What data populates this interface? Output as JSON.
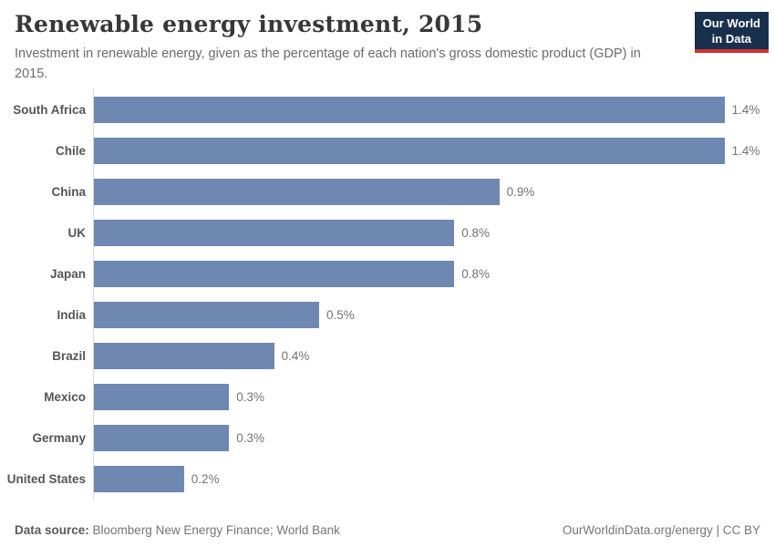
{
  "header": {
    "title": "Renewable energy investment, 2015",
    "subtitle": "Investment in renewable energy, given as the percentage of each nation's gross domestic product (GDP) in 2015.",
    "logo": {
      "line1": "Our World",
      "line2": "in Data"
    }
  },
  "chart_data": {
    "type": "bar",
    "orientation": "horizontal",
    "title": "Renewable energy investment, 2015",
    "categories": [
      "South Africa",
      "Chile",
      "China",
      "UK",
      "Japan",
      "India",
      "Brazil",
      "Mexico",
      "Germany",
      "United States"
    ],
    "values": [
      1.4,
      1.4,
      0.9,
      0.8,
      0.8,
      0.5,
      0.4,
      0.3,
      0.3,
      0.2
    ],
    "value_labels": [
      "1.4%",
      "1.4%",
      "0.9%",
      "0.8%",
      "0.8%",
      "0.5%",
      "0.4%",
      "0.3%",
      "0.3%",
      "0.2%"
    ],
    "xlabel": "",
    "ylabel": "",
    "xlim": [
      0,
      1.5
    ],
    "grid": false,
    "legend": "none",
    "bar_color": "#6e88b2"
  },
  "footer": {
    "source_label": "Data source:",
    "source_text": " Bloomberg New Energy Finance; World Bank",
    "credit": "OurWorldinData.org/energy | CC BY"
  },
  "colors": {
    "bar": "#6e88b2",
    "title": "#383838",
    "subtitle": "#6b6b6b",
    "category_label": "#555555",
    "value_label": "#737373",
    "axis": "#dadada",
    "source_label": "#5b5b5b",
    "muted": "#757575",
    "logo_navy": "#18304d",
    "logo_red": "#cf3331"
  }
}
